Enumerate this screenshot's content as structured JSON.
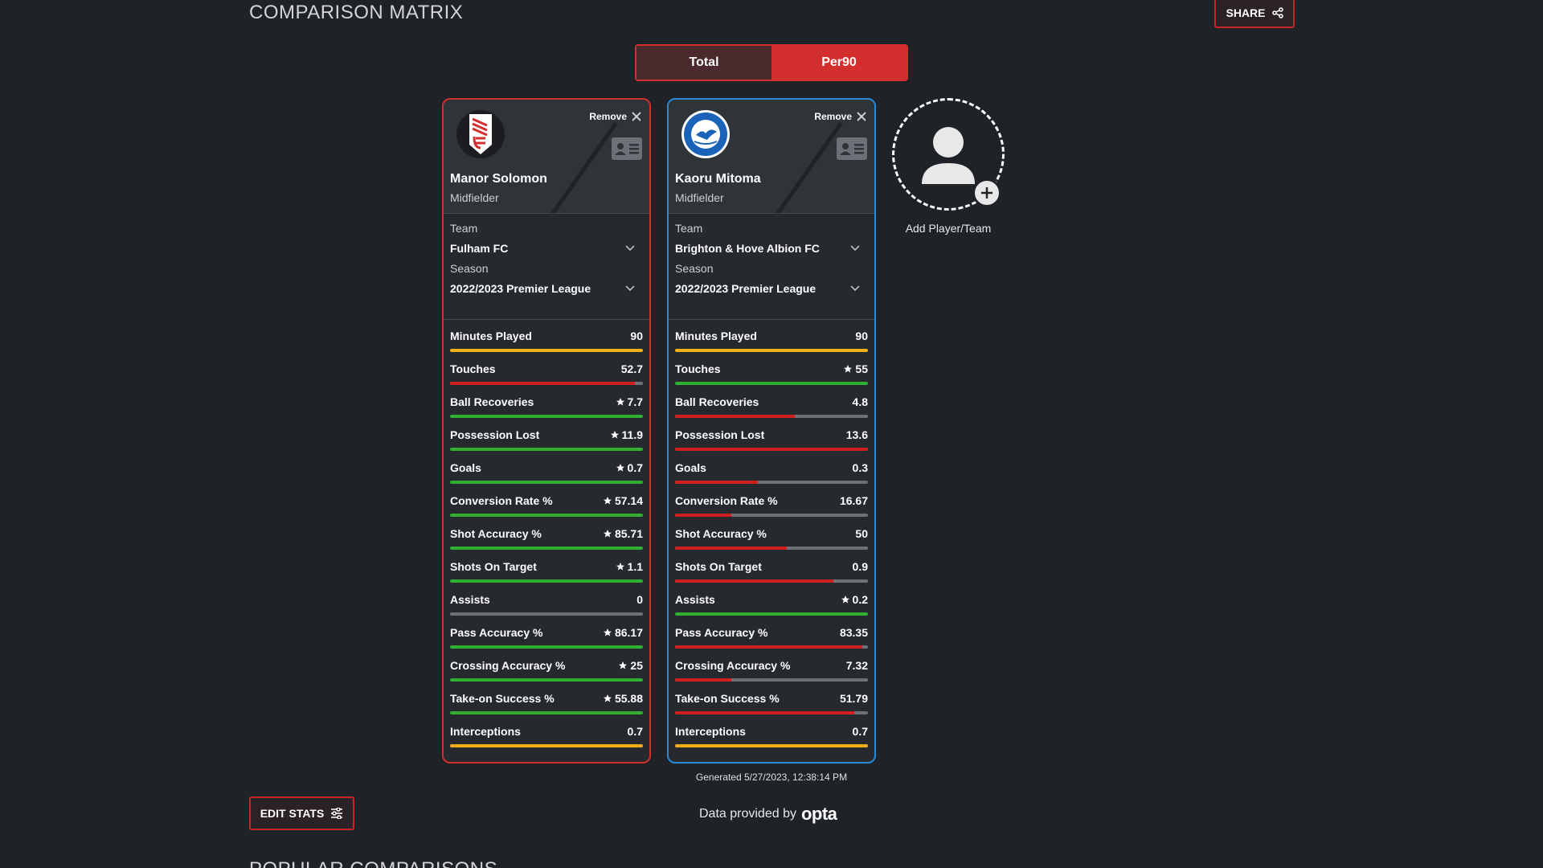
{
  "header": {
    "title": "COMPARISON MATRIX",
    "share_label": "SHARE"
  },
  "toggle": {
    "options": [
      "Total",
      "Per90"
    ],
    "selected": "Per90"
  },
  "cards": [
    {
      "player_name": "Manor Solomon",
      "position": "Midfielder",
      "remove_label": "Remove",
      "team_label": "Team",
      "team": "Fulham FC",
      "season_label": "Season",
      "season": "2022/2023 Premier League",
      "accent": "#d32f2f",
      "crest": "fulham-crest-icon",
      "stats": [
        {
          "label": "Minutes Played",
          "value": "90",
          "star": false,
          "fill": 1.0,
          "color": "#f0b01a"
        },
        {
          "label": "Touches",
          "value": "52.7",
          "star": false,
          "fill": 0.96,
          "color": "#d01f1f"
        },
        {
          "label": "Ball Recoveries",
          "value": "7.7",
          "star": true,
          "fill": 1.0,
          "color": "#2fae2f"
        },
        {
          "label": "Possession Lost",
          "value": "11.9",
          "star": true,
          "fill": 1.0,
          "color": "#2fae2f"
        },
        {
          "label": "Goals",
          "value": "0.7",
          "star": true,
          "fill": 1.0,
          "color": "#2fae2f"
        },
        {
          "label": "Conversion Rate %",
          "value": "57.14",
          "star": true,
          "fill": 1.0,
          "color": "#2fae2f"
        },
        {
          "label": "Shot Accuracy %",
          "value": "85.71",
          "star": true,
          "fill": 1.0,
          "color": "#2fae2f"
        },
        {
          "label": "Shots On Target",
          "value": "1.1",
          "star": true,
          "fill": 1.0,
          "color": "#2fae2f"
        },
        {
          "label": "Assists",
          "value": "0",
          "star": false,
          "fill": 0.0,
          "color": "#6d7177"
        },
        {
          "label": "Pass Accuracy %",
          "value": "86.17",
          "star": true,
          "fill": 1.0,
          "color": "#2fae2f"
        },
        {
          "label": "Crossing Accuracy %",
          "value": "25",
          "star": true,
          "fill": 1.0,
          "color": "#2fae2f"
        },
        {
          "label": "Take-on Success %",
          "value": "55.88",
          "star": true,
          "fill": 1.0,
          "color": "#2fae2f"
        },
        {
          "label": "Interceptions",
          "value": "0.7",
          "star": false,
          "fill": 1.0,
          "color": "#f0b01a"
        }
      ]
    },
    {
      "player_name": "Kaoru Mitoma",
      "position": "Midfielder",
      "remove_label": "Remove",
      "team_label": "Team",
      "team": "Brighton & Hove Albion FC",
      "season_label": "Season",
      "season": "2022/2023 Premier League",
      "accent": "#2a8ad8",
      "crest": "brighton-crest-icon",
      "stats": [
        {
          "label": "Minutes Played",
          "value": "90",
          "star": false,
          "fill": 1.0,
          "color": "#f0b01a"
        },
        {
          "label": "Touches",
          "value": "55",
          "star": true,
          "fill": 1.0,
          "color": "#2fae2f"
        },
        {
          "label": "Ball Recoveries",
          "value": "4.8",
          "star": false,
          "fill": 0.62,
          "color": "#d01f1f"
        },
        {
          "label": "Possession Lost",
          "value": "13.6",
          "star": false,
          "fill": 1.0,
          "color": "#d01f1f"
        },
        {
          "label": "Goals",
          "value": "0.3",
          "star": false,
          "fill": 0.43,
          "color": "#d01f1f"
        },
        {
          "label": "Conversion Rate %",
          "value": "16.67",
          "star": false,
          "fill": 0.29,
          "color": "#d01f1f"
        },
        {
          "label": "Shot Accuracy %",
          "value": "50",
          "star": false,
          "fill": 0.58,
          "color": "#d01f1f"
        },
        {
          "label": "Shots On Target",
          "value": "0.9",
          "star": false,
          "fill": 0.82,
          "color": "#d01f1f"
        },
        {
          "label": "Assists",
          "value": "0.2",
          "star": true,
          "fill": 1.0,
          "color": "#2fae2f"
        },
        {
          "label": "Pass Accuracy %",
          "value": "83.35",
          "star": false,
          "fill": 0.97,
          "color": "#d01f1f"
        },
        {
          "label": "Crossing Accuracy %",
          "value": "7.32",
          "star": false,
          "fill": 0.29,
          "color": "#d01f1f"
        },
        {
          "label": "Take-on Success %",
          "value": "51.79",
          "star": false,
          "fill": 0.93,
          "color": "#d01f1f"
        },
        {
          "label": "Interceptions",
          "value": "0.7",
          "star": false,
          "fill": 1.0,
          "color": "#f0b01a"
        }
      ]
    }
  ],
  "add_player": {
    "label": "Add Player/Team"
  },
  "generated": "Generated 5/27/2023, 12:38:14 PM",
  "footer": {
    "edit_stats_label": "EDIT STATS",
    "provided_label": "Data provided by",
    "provider": "opta",
    "popular_title": "POPULAR COMPARISONS"
  }
}
